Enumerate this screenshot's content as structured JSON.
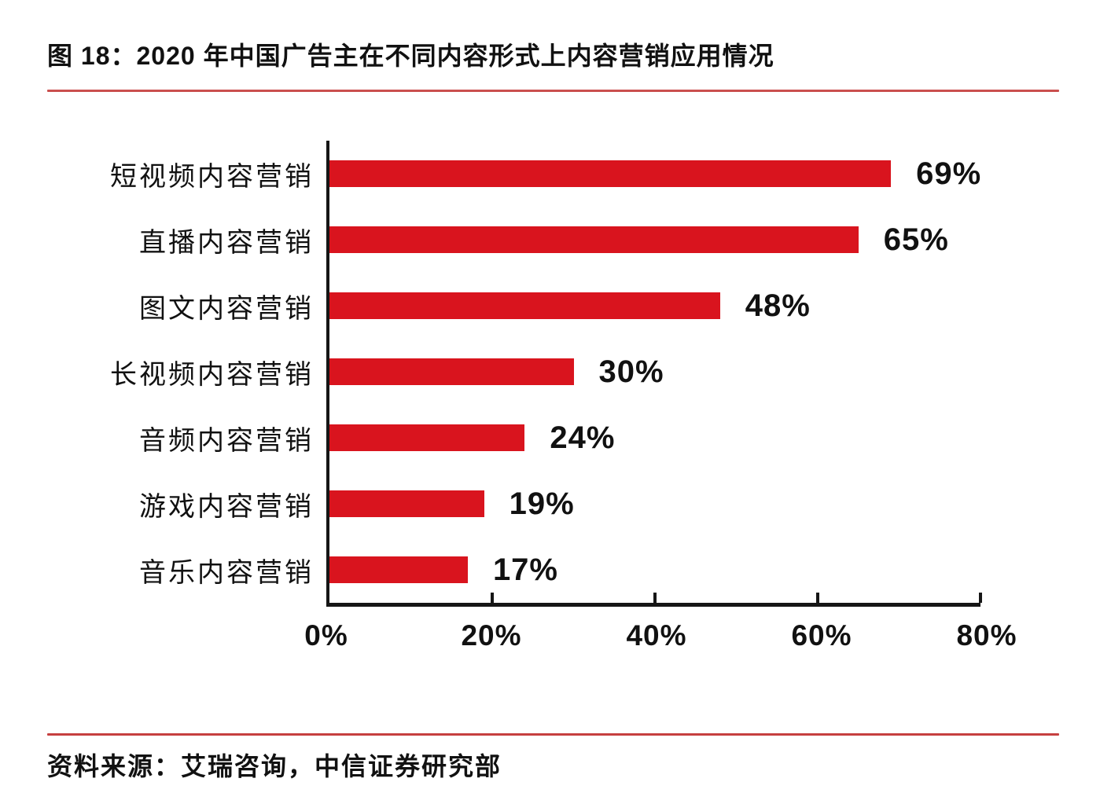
{
  "figure": {
    "title": "图 18：2020 年中国广告主在不同内容形式上内容营销应用情况"
  },
  "chart_data": {
    "type": "bar",
    "orientation": "horizontal",
    "title": "2020 年中国广告主在不同内容形式上内容营销应用情况",
    "categories": [
      "短视频内容营销",
      "直播内容营销",
      "图文内容营销",
      "长视频内容营销",
      "音频内容营销",
      "游戏内容营销",
      "音乐内容营销"
    ],
    "values": [
      69,
      65,
      48,
      30,
      24,
      19,
      17
    ],
    "value_labels": [
      "69%",
      "65%",
      "48%",
      "30%",
      "24%",
      "19%",
      "17%"
    ],
    "x_ticks": [
      "0%",
      "20%",
      "40%",
      "60%",
      "80%"
    ],
    "x_tick_values": [
      0,
      20,
      40,
      60,
      80
    ],
    "xlim": [
      0,
      80
    ],
    "xlabel": "",
    "ylabel": "",
    "grid": false,
    "legend": false,
    "data_labels": true
  },
  "footer": {
    "source": "资料来源：艾瑞咨询，中信证券研究部"
  },
  "colors": {
    "bar": "#d9141e",
    "title_rule": "#ca4f4e",
    "footer_rule": "#c64040",
    "axis": "#161616",
    "text": "#111111"
  }
}
